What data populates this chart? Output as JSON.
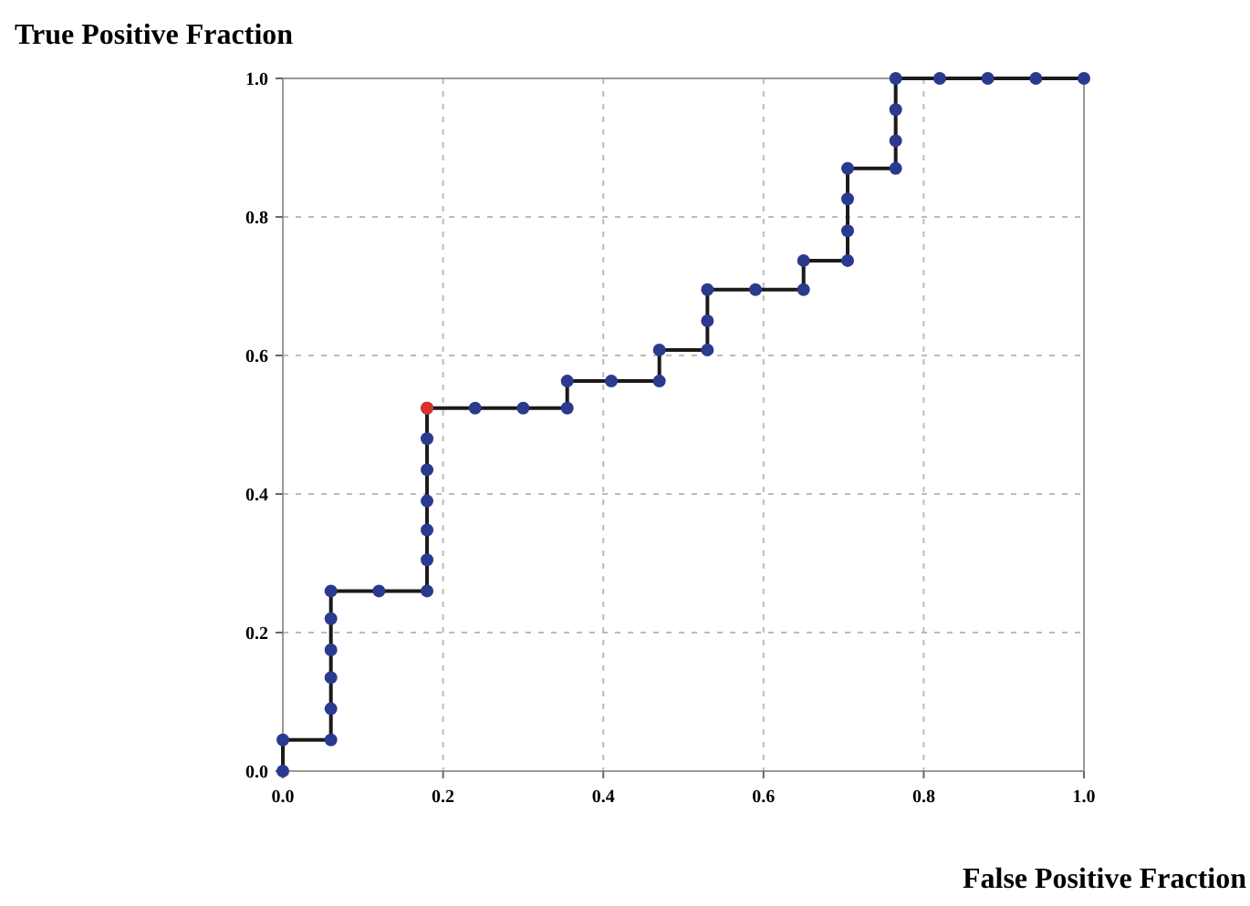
{
  "chart_data": {
    "type": "line",
    "xlabel": "False Positive Fraction",
    "ylabel": "True Positive Fraction",
    "xlim": [
      0,
      1
    ],
    "ylim": [
      0,
      1
    ],
    "xticks": [
      {
        "value": 0,
        "label": "0.0"
      },
      {
        "value": 0.2,
        "label": "0.2"
      },
      {
        "value": 0.4,
        "label": "0.4"
      },
      {
        "value": 0.6,
        "label": "0.6"
      },
      {
        "value": 0.8,
        "label": "0.8"
      },
      {
        "value": 1,
        "label": "1.0"
      }
    ],
    "yticks": [
      {
        "value": 0,
        "label": "0.0"
      },
      {
        "value": 0.2,
        "label": "0.2"
      },
      {
        "value": 0.4,
        "label": "0.4"
      },
      {
        "value": 0.6,
        "label": "0.6"
      },
      {
        "value": 0.8,
        "label": "0.8"
      },
      {
        "value": 1,
        "label": "1.0"
      }
    ],
    "grid": true,
    "marker": "circle",
    "line_style": "solid",
    "series": [
      {
        "color": "#2b3a8f",
        "x": [
          0,
          0,
          0.06,
          0.06,
          0.06,
          0.06,
          0.06,
          0.06,
          0.12,
          0.18,
          0.18,
          0.18,
          0.18,
          0.18,
          0.18,
          0.18,
          0.24,
          0.3,
          0.355,
          0.355,
          0.41,
          0.47,
          0.47,
          0.53,
          0.53,
          0.53,
          0.59,
          0.65,
          0.65,
          0.705,
          0.705,
          0.705,
          0.705,
          0.765,
          0.765,
          0.765,
          0.765,
          0.82,
          0.88,
          0.94,
          1.0
        ],
        "values": [
          0,
          0.045,
          0.045,
          0.09,
          0.135,
          0.175,
          0.22,
          0.26,
          0.26,
          0.26,
          0.305,
          0.348,
          0.39,
          0.435,
          0.48,
          0.524,
          0.524,
          0.524,
          0.524,
          0.563,
          0.563,
          0.563,
          0.608,
          0.608,
          0.65,
          0.695,
          0.695,
          0.695,
          0.737,
          0.737,
          0.78,
          0.826,
          0.87,
          0.87,
          0.91,
          0.955,
          1.0,
          1.0,
          1.0,
          1.0,
          1.0
        ]
      },
      {
        "type": "scatter",
        "color": "#d9342b",
        "x": [
          0.18
        ],
        "values": [
          0.524
        ]
      }
    ]
  }
}
